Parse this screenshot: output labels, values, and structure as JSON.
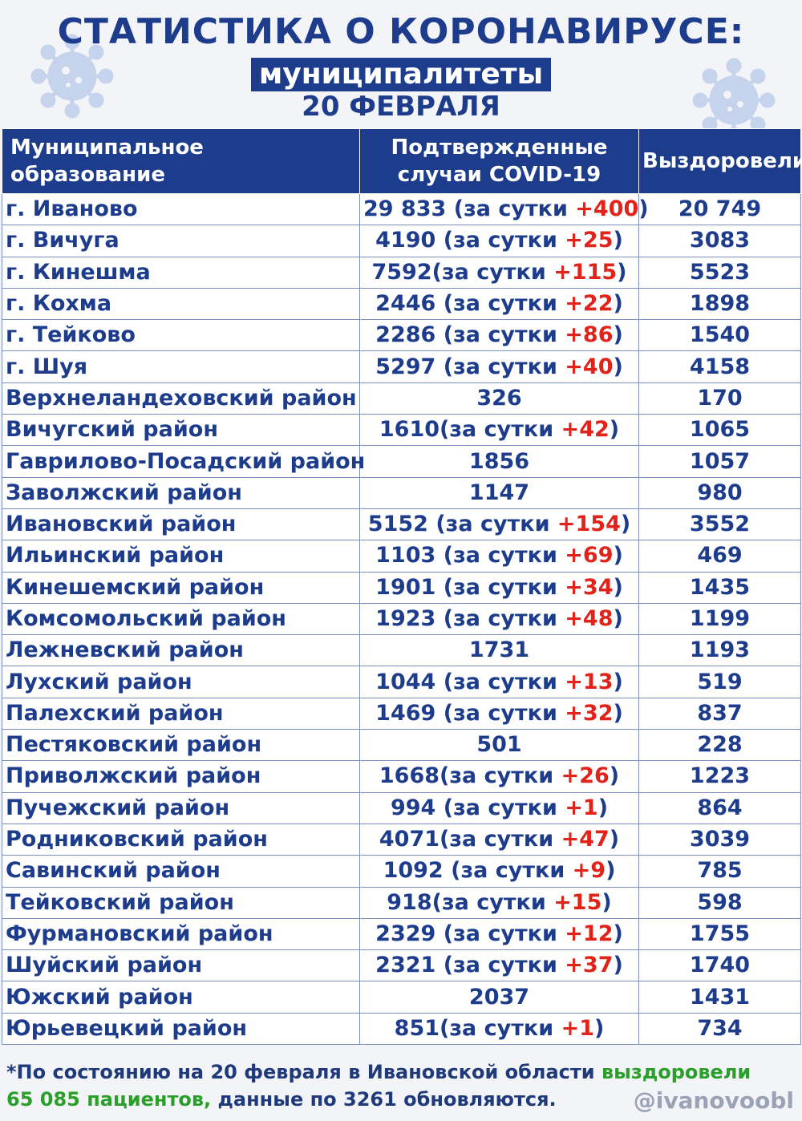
{
  "header": {
    "title": "СТАТИСТИКА О КОРОНАВИРУСЕ:",
    "subtitle": "муниципалитеты",
    "date": "20 ФЕВРАЛЯ"
  },
  "columns": {
    "name": "Муниципальное образование",
    "cases_line1": "Подтвержденные",
    "cases_line2": "случаи COVID-19",
    "recovered": "Выздоровели"
  },
  "per_day_label": "за сутки",
  "rows": [
    {
      "name": "г. Иваново",
      "cases": "29 833",
      "sep": " ",
      "inc": "+400",
      "rec": "20 749"
    },
    {
      "name": "г. Вичуга",
      "cases": "4190",
      "sep": " ",
      "inc": "+25",
      "rec": "3083"
    },
    {
      "name": "г. Кинешма",
      "cases": "7592",
      "sep": "",
      "inc": "+115",
      "rec": "5523"
    },
    {
      "name": "г. Кохма",
      "cases": "2446",
      "sep": " ",
      "inc": "+22",
      "rec": "1898"
    },
    {
      "name": "г. Тейково",
      "cases": "2286",
      "sep": " ",
      "inc": "+86",
      "rec": "1540"
    },
    {
      "name": "г. Шуя",
      "cases": "5297",
      "sep": " ",
      "inc": "+40",
      "rec": "4158"
    },
    {
      "name": "Верхнеландеховский район",
      "cases": "326",
      "inc": null,
      "rec": "170"
    },
    {
      "name": "Вичугский район",
      "cases": "1610",
      "sep": "",
      "inc": "+42",
      "rec": "1065"
    },
    {
      "name": "Гаврилово-Посадский район",
      "cases": "1856",
      "inc": null,
      "rec": "1057"
    },
    {
      "name": "Заволжский район",
      "cases": "1147",
      "inc": null,
      "rec": "980"
    },
    {
      "name": "Ивановский район",
      "cases": "5152",
      "sep": " ",
      "inc": "+154",
      "rec": "3552"
    },
    {
      "name": "Ильинский район",
      "cases": "1103",
      "sep": " ",
      "inc": "+69",
      "rec": "469"
    },
    {
      "name": "Кинешемский район",
      "cases": "1901",
      "sep": " ",
      "inc": "+34",
      "rec": "1435"
    },
    {
      "name": "Комсомольский район",
      "cases": "1923",
      "sep": " ",
      "inc": "+48",
      "rec": "1199"
    },
    {
      "name": "Лежневский район",
      "cases": "1731",
      "inc": null,
      "rec": "1193"
    },
    {
      "name": "Лухский район",
      "cases": "1044",
      "sep": " ",
      "inc": "+13",
      "rec": "519"
    },
    {
      "name": "Палехский район",
      "cases": "1469",
      "sep": " ",
      "inc": "+32",
      "rec": "837"
    },
    {
      "name": "Пестяковский район",
      "cases": "501",
      "inc": null,
      "rec": "228"
    },
    {
      "name": "Приволжский район",
      "cases": "1668",
      "sep": "",
      "inc": "+26",
      "rec": "1223"
    },
    {
      "name": "Пучежский район",
      "cases": "994",
      "sep": " ",
      "inc": "+1",
      "rec": "864"
    },
    {
      "name": "Родниковский район",
      "cases": "4071",
      "sep": "",
      "inc": "+47",
      "rec": "3039"
    },
    {
      "name": "Савинский район",
      "cases": "1092",
      "sep": " ",
      "inc": "+9",
      "rec": "785"
    },
    {
      "name": "Тейковский район",
      "cases": "918",
      "sep": "",
      "inc": "+15",
      "rec": "598"
    },
    {
      "name": "Фурмановский район",
      "cases": "2329",
      "sep": " ",
      "inc": "+12",
      "rec": "1755"
    },
    {
      "name": "Шуйский район",
      "cases": "2321",
      "sep": " ",
      "inc": "+37",
      "rec": "1740"
    },
    {
      "name": "Южский район",
      "cases": "2037",
      "inc": null,
      "rec": "1431"
    },
    {
      "name": "Юрьевецкий район",
      "cases": "851",
      "sep": "",
      "inc": "+1",
      "rec": "734"
    }
  ],
  "footer": {
    "part1": "*По состоянию на 20 февраля в Ивановской области ",
    "green1": "выздоровели",
    "green2": "65 085 пациентов,",
    "part2": " данные по 3261 обновляются."
  },
  "handle": "@ivanovoobl",
  "colors": {
    "primary": "#1d3c8c",
    "increase": "#e2231a",
    "recovered_highlight": "#2aa02a",
    "virus_icon": "#c5d3ec"
  },
  "icons": [
    "virus-icon-left",
    "virus-icon-right"
  ]
}
